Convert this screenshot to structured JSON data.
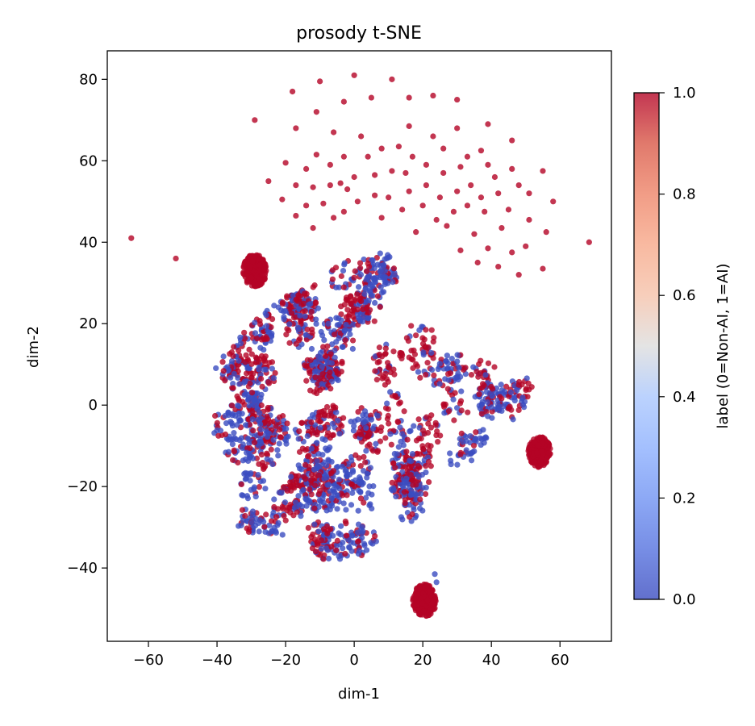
{
  "chart_data": {
    "type": "scatter",
    "title": "prosody t-SNE",
    "xlabel": "dim-1",
    "ylabel": "dim-2",
    "xlim": [
      -72,
      75
    ],
    "ylim": [
      -58,
      87
    ],
    "xticks": [
      -60,
      -40,
      -20,
      0,
      20,
      40,
      60
    ],
    "yticks": [
      -40,
      -20,
      0,
      20,
      40,
      60,
      80
    ],
    "grid": false,
    "colorbar": {
      "label": "label (0=Non-AI, 1=AI)",
      "range": [
        0.0,
        1.0
      ],
      "ticks": [
        0.0,
        0.2,
        0.4,
        0.6,
        0.8,
        1.0
      ],
      "colormap": "coolwarm",
      "color_low": "#3b4cc0",
      "color_mid": "#dddddd",
      "color_high": "#b40426"
    },
    "point_alpha": 0.8,
    "clusters": [
      {
        "center": [
          -29,
          33
        ],
        "radius": 4,
        "label": 1
      },
      {
        "center": [
          54,
          -11.5
        ],
        "radius": 3.8,
        "label": 1
      },
      {
        "center": [
          20.5,
          -48
        ],
        "radius": 4,
        "label": 1
      }
    ],
    "outliers": [
      {
        "x": -65,
        "y": 41,
        "label": 1
      },
      {
        "x": -52,
        "y": 36,
        "label": 1
      },
      {
        "x": -29,
        "y": 70,
        "label": 1
      },
      {
        "x": 68.5,
        "y": 40,
        "label": 1
      },
      {
        "x": 23.5,
        "y": -41.5,
        "label": 0
      },
      {
        "x": 24,
        "y": -43.5,
        "label": 0
      }
    ],
    "arc_points": [
      {
        "x": 0,
        "y": 81,
        "label": 1
      },
      {
        "x": 11,
        "y": 80,
        "label": 1
      },
      {
        "x": -10,
        "y": 79.5,
        "label": 1
      },
      {
        "x": -18,
        "y": 77,
        "label": 1
      },
      {
        "x": 23,
        "y": 76,
        "label": 1
      },
      {
        "x": 16,
        "y": 75.5,
        "label": 1
      },
      {
        "x": 5,
        "y": 75.5,
        "label": 1
      },
      {
        "x": 30,
        "y": 75,
        "label": 1
      },
      {
        "x": -3,
        "y": 74.5,
        "label": 1
      },
      {
        "x": -11,
        "y": 72,
        "label": 1
      },
      {
        "x": -17,
        "y": 68,
        "label": 1
      },
      {
        "x": 16,
        "y": 68.5,
        "label": 1
      },
      {
        "x": 30,
        "y": 68,
        "label": 1
      },
      {
        "x": 39,
        "y": 69,
        "label": 1
      },
      {
        "x": -6,
        "y": 67,
        "label": 1
      },
      {
        "x": 2,
        "y": 66,
        "label": 1
      },
      {
        "x": 23,
        "y": 66,
        "label": 1
      },
      {
        "x": 46,
        "y": 65,
        "label": 1
      },
      {
        "x": -11,
        "y": 61.5,
        "label": 1
      },
      {
        "x": 8,
        "y": 63,
        "label": 1
      },
      {
        "x": 13,
        "y": 63.5,
        "label": 1
      },
      {
        "x": 26,
        "y": 63,
        "label": 1
      },
      {
        "x": 37,
        "y": 62.5,
        "label": 1
      },
      {
        "x": -3,
        "y": 61,
        "label": 1
      },
      {
        "x": 4,
        "y": 61,
        "label": 1
      },
      {
        "x": 17,
        "y": 61,
        "label": 1
      },
      {
        "x": 33,
        "y": 61,
        "label": 1
      },
      {
        "x": -20,
        "y": 59.5,
        "label": 1
      },
      {
        "x": -7,
        "y": 59,
        "label": 1
      },
      {
        "x": 21,
        "y": 59,
        "label": 1
      },
      {
        "x": 31,
        "y": 58.5,
        "label": 1
      },
      {
        "x": 39,
        "y": 59,
        "label": 1
      },
      {
        "x": -14,
        "y": 58,
        "label": 1
      },
      {
        "x": 46,
        "y": 58,
        "label": 1
      },
      {
        "x": 55,
        "y": 57.5,
        "label": 1
      },
      {
        "x": 0,
        "y": 56,
        "label": 1
      },
      {
        "x": 6,
        "y": 56.5,
        "label": 1
      },
      {
        "x": 11,
        "y": 57.5,
        "label": 1
      },
      {
        "x": 15,
        "y": 57,
        "label": 1
      },
      {
        "x": 26,
        "y": 57,
        "label": 1
      },
      {
        "x": 41,
        "y": 56,
        "label": 1
      },
      {
        "x": -25,
        "y": 55,
        "label": 1
      },
      {
        "x": -4,
        "y": 54.5,
        "label": 1
      },
      {
        "x": -17,
        "y": 54,
        "label": 1
      },
      {
        "x": -7,
        "y": 54,
        "label": 1
      },
      {
        "x": 21,
        "y": 54,
        "label": 1
      },
      {
        "x": 34,
        "y": 54,
        "label": 1
      },
      {
        "x": 48,
        "y": 54,
        "label": 1
      },
      {
        "x": -12,
        "y": 53.5,
        "label": 1
      },
      {
        "x": -2,
        "y": 53,
        "label": 1
      },
      {
        "x": 16,
        "y": 52.5,
        "label": 1
      },
      {
        "x": 30,
        "y": 52.5,
        "label": 1
      },
      {
        "x": 42,
        "y": 52,
        "label": 1
      },
      {
        "x": 6,
        "y": 51.5,
        "label": 1
      },
      {
        "x": 10,
        "y": 51,
        "label": 1
      },
      {
        "x": 25,
        "y": 51,
        "label": 1
      },
      {
        "x": 37,
        "y": 51,
        "label": 1
      },
      {
        "x": 51,
        "y": 52,
        "label": 1
      },
      {
        "x": 58,
        "y": 50,
        "label": 1
      },
      {
        "x": -21,
        "y": 50.5,
        "label": 1
      },
      {
        "x": -9,
        "y": 49.5,
        "label": 1
      },
      {
        "x": 1,
        "y": 50,
        "label": 1
      },
      {
        "x": 20,
        "y": 49,
        "label": 1
      },
      {
        "x": 33,
        "y": 49,
        "label": 1
      },
      {
        "x": 45,
        "y": 48,
        "label": 1
      },
      {
        "x": -14,
        "y": 49,
        "label": 1
      },
      {
        "x": -3,
        "y": 47.5,
        "label": 1
      },
      {
        "x": 14,
        "y": 48,
        "label": 1
      },
      {
        "x": 29,
        "y": 47.5,
        "label": 1
      },
      {
        "x": 38,
        "y": 47.5,
        "label": 1
      },
      {
        "x": -17,
        "y": 46.5,
        "label": 1
      },
      {
        "x": -6,
        "y": 46,
        "label": 1
      },
      {
        "x": 8,
        "y": 46,
        "label": 1
      },
      {
        "x": 24,
        "y": 45.5,
        "label": 1
      },
      {
        "x": 51,
        "y": 45.5,
        "label": 1
      },
      {
        "x": -12,
        "y": 43.5,
        "label": 1
      },
      {
        "x": 27,
        "y": 44,
        "label": 1
      },
      {
        "x": 43,
        "y": 43.5,
        "label": 1
      },
      {
        "x": 56,
        "y": 42.5,
        "label": 1
      },
      {
        "x": 18,
        "y": 42.5,
        "label": 1
      },
      {
        "x": 35,
        "y": 42,
        "label": 1
      },
      {
        "x": 50,
        "y": 39,
        "label": 1
      },
      {
        "x": 39,
        "y": 38.5,
        "label": 1
      },
      {
        "x": 31,
        "y": 38,
        "label": 1
      },
      {
        "x": 46,
        "y": 37.5,
        "label": 1
      },
      {
        "x": 36,
        "y": 35,
        "label": 1
      },
      {
        "x": 55,
        "y": 33.5,
        "label": 1
      },
      {
        "x": 42,
        "y": 34,
        "label": 1
      },
      {
        "x": 48,
        "y": 32,
        "label": 1
      }
    ],
    "main_cloud_outline": [
      [
        -45,
        -13
      ],
      [
        -44,
        -17
      ],
      [
        -42,
        -23
      ],
      [
        -38,
        -29
      ],
      [
        -32,
        -31
      ],
      [
        -24,
        -33
      ],
      [
        -16,
        -34
      ],
      [
        -10,
        -38
      ],
      [
        -4,
        -38
      ],
      [
        2,
        -37
      ],
      [
        8,
        -34
      ],
      [
        14,
        -31
      ],
      [
        20,
        -26
      ],
      [
        28,
        -23
      ],
      [
        34,
        -18
      ],
      [
        38,
        -12
      ],
      [
        44,
        -6
      ],
      [
        49,
        -2
      ],
      [
        52,
        2
      ],
      [
        52,
        10
      ],
      [
        47,
        11
      ],
      [
        42,
        10
      ],
      [
        34,
        13
      ],
      [
        28,
        16
      ],
      [
        22,
        20
      ],
      [
        17,
        24
      ],
      [
        13,
        30
      ],
      [
        10,
        39
      ],
      [
        4,
        38
      ],
      [
        -4,
        35
      ],
      [
        -10,
        32
      ],
      [
        -16,
        28
      ],
      [
        -22,
        26
      ],
      [
        -28,
        22
      ],
      [
        -34,
        16
      ],
      [
        -38,
        13
      ],
      [
        -42,
        9
      ],
      [
        -44,
        3
      ],
      [
        -44,
        -5
      ]
    ],
    "main_cloud_count": 2400,
    "main_cloud_label_share": {
      "label_1": 0.5,
      "label_0": 0.5
    }
  }
}
